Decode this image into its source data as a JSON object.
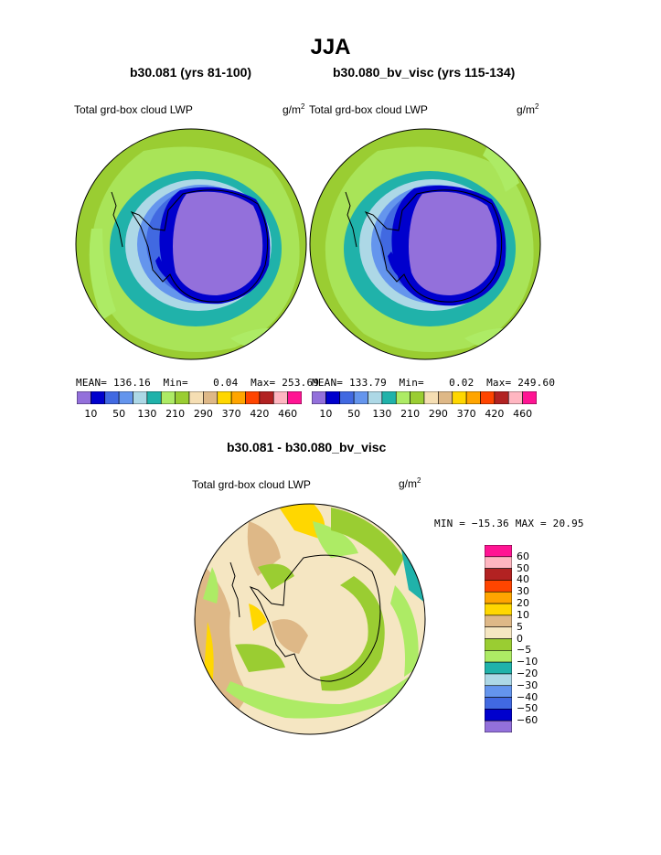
{
  "title": "JJA",
  "colors": {
    "abs_scale": [
      "#9370db",
      "#0000cd",
      "#4169e1",
      "#6495ed",
      "#add8e6",
      "#20b2aa",
      "#adeb65",
      "#9acd32",
      "#f5deb3",
      "#deb887",
      "#ffd700",
      "#ffa500",
      "#ff4500",
      "#b22222",
      "#ffb6c1",
      "#ff1493"
    ],
    "diff_scale": [
      "#ff1493",
      "#ffb6c1",
      "#b22222",
      "#ff4500",
      "#ffa500",
      "#ffd700",
      "#deb887",
      "#f5e6c2",
      "#9acd32",
      "#adeb65",
      "#20b2aa",
      "#add8e6",
      "#6495ed",
      "#4169e1",
      "#0000cd",
      "#9370db"
    ]
  },
  "panels": [
    {
      "title": "b30.081 (yrs 81-100)",
      "variable": "Total grd-box cloud LWP",
      "units": "g/m",
      "units_exp": "2",
      "mean_label": "MEAN=",
      "mean": "136.16",
      "min_label": "Min=",
      "min": "0.04",
      "max_label": "Max=",
      "max": "253.69"
    },
    {
      "title": "b30.080_bv_visc (yrs 115-134)",
      "variable": "Total grd-box cloud LWP",
      "units": "g/m",
      "units_exp": "2",
      "mean_label": "MEAN=",
      "mean": "133.79",
      "min_label": "Min=",
      "min": "0.02",
      "max_label": "Max=",
      "max": "249.60"
    }
  ],
  "abs_ticks": [
    "10",
    "50",
    "130",
    "210",
    "290",
    "370",
    "420",
    "460"
  ],
  "difference": {
    "title": "b30.081 - b30.080_bv_visc",
    "variable": "Total grd-box cloud LWP",
    "units": "g/m",
    "units_exp": "2",
    "min_max_text": "MIN = −15.36 MAX =  20.95",
    "levels": [
      "60",
      "50",
      "40",
      "30",
      "20",
      "10",
      "5",
      "0",
      "−5",
      "−10",
      "−20",
      "−30",
      "−40",
      "−50",
      "−60"
    ]
  }
}
